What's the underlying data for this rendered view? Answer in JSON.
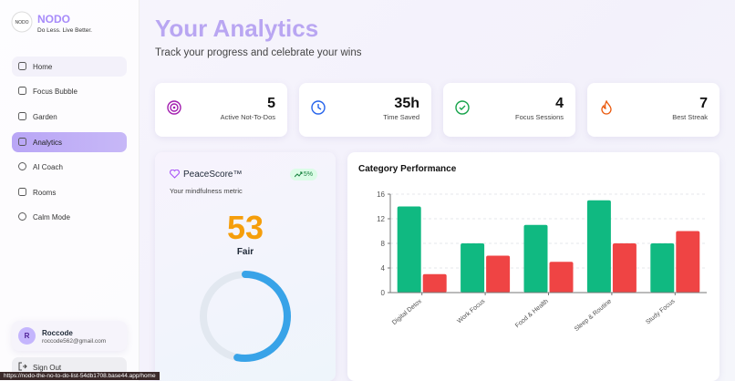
{
  "brand": {
    "name": "NODO",
    "tagline": "Do Less. Live Better."
  },
  "nav": [
    "Home",
    "Focus Bubble",
    "Garden",
    "Analytics",
    "AI Coach",
    "Rooms",
    "Calm Mode"
  ],
  "user": {
    "initial": "R",
    "name": "Roccode",
    "email": "roccode562@gmail.com"
  },
  "sign_out": "Sign Out",
  "status_url": "https://nodo-the-no-to-do-list-54db1708.base44.app/home",
  "header": {
    "title": "Your Analytics",
    "subtitle": "Track your progress and celebrate your wins"
  },
  "stats": [
    {
      "value": 5,
      "label": "Active Not-To-Dos"
    },
    {
      "value": "35h",
      "label": "Time Saved"
    },
    {
      "value": 4,
      "label": "Focus Sessions"
    },
    {
      "value": 7,
      "label": "Best Streak"
    }
  ],
  "peace": {
    "title": "PeaceScore™",
    "change": "5%",
    "subtitle": "Your mindfulness metric",
    "score": 53,
    "rating": "Fair"
  },
  "chart_data": {
    "type": "bar",
    "title": "Category Performance",
    "categories": [
      "Digital Detox",
      "Work Focus",
      "Food & Health",
      "Sleep & Routine",
      "Study Focus"
    ],
    "series": [
      {
        "color": "#10b981",
        "values": [
          14,
          8,
          11,
          15,
          8
        ]
      },
      {
        "color": "#ef4444",
        "values": [
          3,
          6,
          5,
          8,
          10
        ]
      }
    ],
    "ylim": [
      0,
      16
    ],
    "yticks": [
      0,
      4,
      8,
      12,
      16
    ],
    "grid": true
  }
}
